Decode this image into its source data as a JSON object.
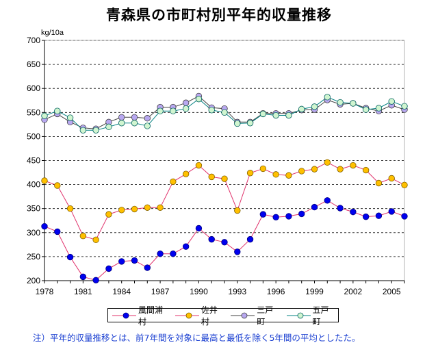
{
  "chart_data": {
    "type": "line",
    "title": "青森県の市町村別平年的収量推移",
    "ylabel": "kg/10a",
    "xlabel": "",
    "ylim": [
      200,
      700
    ],
    "yticks": [
      200,
      250,
      300,
      350,
      400,
      450,
      500,
      550,
      600,
      650,
      700
    ],
    "xticks": [
      "1978",
      "1981",
      "1984",
      "1987",
      "1990",
      "1993",
      "1996",
      "1999",
      "2002",
      "2005"
    ],
    "x": [
      1978,
      1979,
      1980,
      1981,
      1982,
      1983,
      1984,
      1985,
      1986,
      1987,
      1988,
      1989,
      1990,
      1991,
      1992,
      1993,
      1994,
      1995,
      1996,
      1997,
      1998,
      1999,
      2000,
      2001,
      2002,
      2003,
      2004,
      2005,
      2006
    ],
    "series": [
      {
        "name": "風間浦村",
        "color": "#0000ee",
        "line_color": "#e0306a",
        "values": [
          313,
          302,
          249,
          208,
          201,
          225,
          240,
          242,
          227,
          256,
          256,
          271,
          309,
          286,
          280,
          260,
          286,
          338,
          332,
          334,
          339,
          353,
          367,
          351,
          343,
          333,
          335,
          344,
          334
        ]
      },
      {
        "name": "佐井村",
        "color": "#ffc000",
        "line_color": "#e0306a",
        "values": [
          408,
          398,
          350,
          293,
          285,
          338,
          347,
          349,
          352,
          352,
          406,
          422,
          440,
          416,
          412,
          346,
          424,
          433,
          421,
          419,
          428,
          432,
          446,
          432,
          440,
          430,
          403,
          413,
          399
        ]
      },
      {
        "name": "三戸町",
        "color": "#b8a8f0",
        "line_color": "#404040",
        "values": [
          535,
          547,
          530,
          518,
          516,
          530,
          540,
          540,
          538,
          561,
          561,
          570,
          584,
          560,
          558,
          530,
          530,
          548,
          548,
          548,
          555,
          556,
          576,
          567,
          569,
          559,
          553,
          565,
          556
        ]
      },
      {
        "name": "五戸町",
        "color": "#d0f5d0",
        "line_color": "#008080",
        "values": [
          543,
          553,
          539,
          513,
          513,
          520,
          528,
          528,
          522,
          553,
          553,
          558,
          578,
          555,
          550,
          527,
          528,
          547,
          544,
          544,
          557,
          562,
          582,
          571,
          569,
          556,
          559,
          573,
          563
        ]
      }
    ]
  },
  "note": "注）平年的収量推移とは、前7年間を対象に最高と最低を除く5年間の平均としたた。"
}
